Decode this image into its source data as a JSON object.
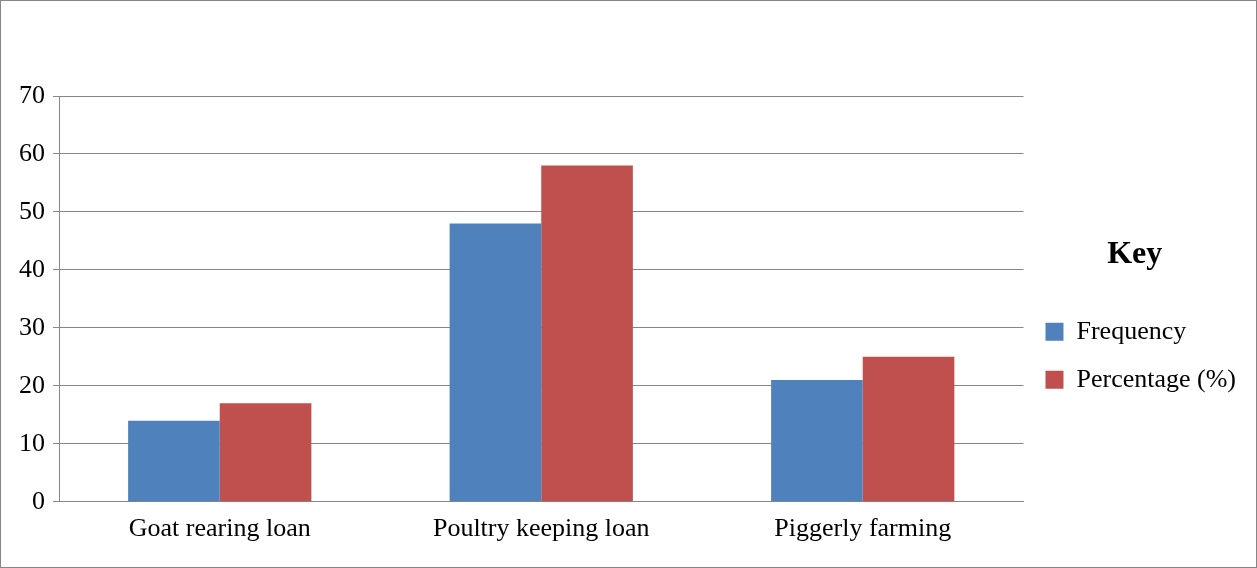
{
  "chart_data": {
    "type": "bar",
    "legend_title": "Key",
    "categories": [
      "Goat rearing loan",
      "Poultry keeping loan",
      "Piggerly farming"
    ],
    "series": [
      {
        "name": "Frequency",
        "color": "#4f81bd",
        "values": [
          14,
          48,
          21
        ]
      },
      {
        "name": "Percentage (%)",
        "color": "#c0504d",
        "values": [
          17,
          58,
          25
        ]
      }
    ],
    "ylim": [
      0,
      70
    ],
    "yticks": [
      0,
      10,
      20,
      30,
      40,
      50,
      60,
      70
    ],
    "grid": "y",
    "legend": "right"
  }
}
